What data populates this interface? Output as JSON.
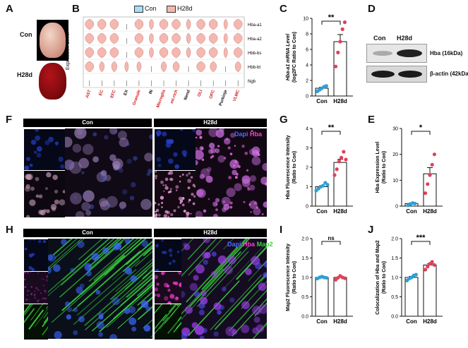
{
  "panel_letters": {
    "A": "A",
    "B": "B",
    "C": "C",
    "D": "D",
    "E": "E",
    "F": "F",
    "G": "G",
    "H": "H",
    "I": "I",
    "J": "J"
  },
  "panelA": {
    "con": "Con",
    "h28d": "H28d"
  },
  "legend": {
    "con": "Con",
    "h28d": "H28d",
    "con_color": "#a7dff5",
    "h28d_color": "#f4b8b0"
  },
  "panelB": {
    "ylabel": "Expression Level",
    "genes": [
      "Hba-a1",
      "Hba-a2",
      "Hbb-bs",
      "Hbb-bt",
      "Ngb"
    ],
    "cell_types": [
      "AST",
      "EC",
      "EFC",
      "EX",
      "Granule",
      "IN",
      "Microglia",
      "mt-rich",
      "Nend",
      "OLI",
      "OPC",
      "Purkinje",
      "VLMC"
    ],
    "red_cell_types": [
      "AST",
      "EC",
      "EFC",
      "Granule",
      "Microglia",
      "mt-rich",
      "OLI",
      "OPC",
      "VLMC"
    ]
  },
  "panelD": {
    "con": "Con",
    "h28d": "H28d",
    "hba": "Hba (16kDa)",
    "actin": "β-actin (42kDa)"
  },
  "panelF": {
    "con": "Con",
    "h28d": "H28d",
    "dapi": "Dapi",
    "hba": "Hba"
  },
  "panelH": {
    "con": "Con",
    "h28d": "H28d",
    "dapi": "Dapi",
    "hba": "Hba",
    "map2": "Map2"
  },
  "colors": {
    "con_fill": "#ffffff",
    "con_point": "#2f9fd6",
    "h28d_point": "#e0405a",
    "dapi": "#4a6cff",
    "hba": "#ff3fd0",
    "map2": "#39d13c"
  },
  "chart_data": [
    {
      "panel": "C",
      "type": "bar",
      "categories": [
        "Con",
        "H28d"
      ],
      "values": [
        1.0,
        7.0
      ],
      "points": [
        [
          0.6,
          0.8,
          1.0,
          1.2,
          1.3
        ],
        [
          3.8,
          5.6,
          7.0,
          8.6,
          9.5
        ]
      ],
      "ylabel": "Hba-a1 mRNA Level",
      "ylabel2": "(log2FC Ratio to Con)",
      "ylim": [
        0,
        10
      ],
      "yticks": [
        0,
        2,
        4,
        6,
        8,
        10
      ],
      "sig": "**"
    },
    {
      "panel": "G",
      "type": "bar",
      "categories": [
        "Con",
        "H28d"
      ],
      "values": [
        1.0,
        2.25
      ],
      "points": [
        [
          0.8,
          0.9,
          1.0,
          1.05,
          1.2,
          1.1
        ],
        [
          1.6,
          1.9,
          2.3,
          2.5,
          2.8,
          2.4
        ]
      ],
      "ylabel": "Hba Fluorescence Intensity",
      "ylabel2": "(Ratio to Con)",
      "ylim": [
        0,
        4
      ],
      "yticks": [
        0,
        1,
        2,
        3,
        4
      ],
      "sig": "**"
    },
    {
      "panel": "E",
      "type": "bar",
      "categories": [
        "Con",
        "H28d"
      ],
      "values": [
        1.0,
        12.5
      ],
      "points": [
        [
          0.3,
          0.8,
          1.2,
          1.0
        ],
        [
          5.0,
          8.5,
          12.0,
          16.0,
          20.0
        ]
      ],
      "ylabel": "Hba Expression Level",
      "ylabel2": "(Ratio to Con)",
      "ylim": [
        0,
        30
      ],
      "yticks": [
        0,
        10,
        20,
        30
      ],
      "sig": "*"
    },
    {
      "panel": "I",
      "type": "bar",
      "categories": [
        "Con",
        "H28d"
      ],
      "values": [
        1.0,
        1.0
      ],
      "points": [
        [
          0.97,
          1.0,
          1.02,
          1.0,
          0.99
        ],
        [
          0.94,
          0.99,
          1.04,
          1.0,
          0.98
        ]
      ],
      "ylabel": "Map2 Fluorescence Intensity",
      "ylabel2": "(Ratio to Con)",
      "ylim": [
        0,
        2
      ],
      "yticks": [
        0,
        0.5,
        1.0,
        1.5,
        2.0
      ],
      "sig": "ns"
    },
    {
      "panel": "J",
      "type": "bar",
      "categories": [
        "Con",
        "H28d"
      ],
      "values": [
        1.0,
        1.32
      ],
      "points": [
        [
          0.92,
          0.97,
          1.0,
          1.05,
          1.07
        ],
        [
          1.2,
          1.28,
          1.35,
          1.4,
          1.32
        ]
      ],
      "ylabel": "Colocalization of Hba and Map2",
      "ylabel2": "(Ratio to Con)",
      "ylim": [
        0,
        2
      ],
      "yticks": [
        0,
        0.5,
        1.0,
        1.5,
        2.0
      ],
      "sig": "***"
    }
  ]
}
